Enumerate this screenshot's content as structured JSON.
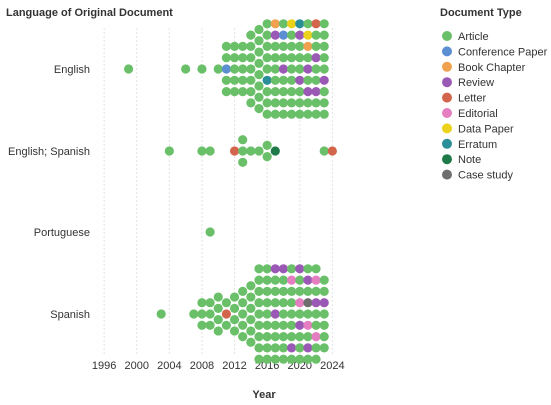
{
  "chart_data": {
    "type": "scatter",
    "title": "",
    "y_title": "Language of Original Document",
    "x_title": "Year",
    "legend_title": "Document Type",
    "legend_position": "right",
    "grid": true,
    "x_ticks": [
      "1996",
      "2000",
      "2004",
      "2008",
      "2012",
      "2016",
      "2020",
      "2024"
    ],
    "x_range": [
      1996,
      2024
    ],
    "categories": [
      "English",
      "English; Spanish",
      "Portuguese",
      "Spanish"
    ],
    "series": [
      {
        "name": "Article",
        "color": "#6abf69"
      },
      {
        "name": "Conference Paper",
        "color": "#5b8fd1"
      },
      {
        "name": "Book Chapter",
        "color": "#f0a150"
      },
      {
        "name": "Review",
        "color": "#9b59b6"
      },
      {
        "name": "Letter",
        "color": "#d2654b"
      },
      {
        "name": "Editorial",
        "color": "#e57ec0"
      },
      {
        "name": "Data Paper",
        "color": "#ecd21b"
      },
      {
        "name": "Erratum",
        "color": "#2a8f99"
      },
      {
        "name": "Note",
        "color": "#1f7a4a"
      },
      {
        "name": "Case study",
        "color": "#6e6e6e"
      }
    ],
    "columns": [
      {
        "cat": "English",
        "year": 1999,
        "types": [
          "Article"
        ]
      },
      {
        "cat": "English",
        "year": 2006,
        "types": [
          "Article"
        ]
      },
      {
        "cat": "English",
        "year": 2008,
        "types": [
          "Article"
        ]
      },
      {
        "cat": "English",
        "year": 2010,
        "types": [
          "Article"
        ]
      },
      {
        "cat": "English",
        "year": 2011,
        "types": [
          "Article",
          "Article",
          "Conference Paper",
          "Article",
          "Article"
        ]
      },
      {
        "cat": "English",
        "year": 2012,
        "types": [
          "Article",
          "Article",
          "Article",
          "Article",
          "Article"
        ]
      },
      {
        "cat": "English",
        "year": 2013,
        "types": [
          "Article",
          "Article",
          "Article",
          "Article",
          "Article"
        ]
      },
      {
        "cat": "English",
        "year": 2014,
        "types": [
          "Article",
          "Article",
          "Article",
          "Article",
          "Article",
          "Article",
          "Article"
        ]
      },
      {
        "cat": "English",
        "year": 2015,
        "types": [
          "Article",
          "Article",
          "Article",
          "Article",
          "Article",
          "Article",
          "Article",
          "Article"
        ]
      },
      {
        "cat": "English",
        "year": 2016,
        "types": [
          "Article",
          "Article",
          "Article",
          "Article",
          "Article",
          "Erratum",
          "Article",
          "Article",
          "Article"
        ]
      },
      {
        "cat": "English",
        "year": 2017,
        "types": [
          "Book Chapter",
          "Review",
          "Article",
          "Article",
          "Article",
          "Article",
          "Article",
          "Article",
          "Article"
        ]
      },
      {
        "cat": "English",
        "year": 2018,
        "types": [
          "Article",
          "Conference Paper",
          "Article",
          "Article",
          "Review",
          "Article",
          "Article",
          "Article",
          "Article"
        ]
      },
      {
        "cat": "English",
        "year": 2019,
        "types": [
          "Data Paper",
          "Article",
          "Article",
          "Article",
          "Article",
          "Article",
          "Article",
          "Article",
          "Article"
        ]
      },
      {
        "cat": "English",
        "year": 2020,
        "types": [
          "Erratum",
          "Review",
          "Article",
          "Article",
          "Article",
          "Review",
          "Article",
          "Article",
          "Article"
        ]
      },
      {
        "cat": "English",
        "year": 2021,
        "types": [
          "Article",
          "Data Paper",
          "Book Chapter",
          "Article",
          "Review",
          "Article",
          "Review",
          "Article",
          "Article"
        ]
      },
      {
        "cat": "English",
        "year": 2022,
        "types": [
          "Letter",
          "Article",
          "Article",
          "Review",
          "Article",
          "Article",
          "Review",
          "Article",
          "Article"
        ]
      },
      {
        "cat": "English",
        "year": 2023,
        "types": [
          "Article",
          "Article",
          "Article",
          "Article",
          "Article",
          "Review",
          "Article",
          "Article",
          "Article"
        ]
      },
      {
        "cat": "English; Spanish",
        "year": 2004,
        "types": [
          "Article"
        ]
      },
      {
        "cat": "English; Spanish",
        "year": 2008,
        "types": [
          "Article"
        ]
      },
      {
        "cat": "English; Spanish",
        "year": 2009,
        "types": [
          "Article"
        ]
      },
      {
        "cat": "English; Spanish",
        "year": 2012,
        "types": [
          "Letter"
        ]
      },
      {
        "cat": "English; Spanish",
        "year": 2013,
        "types": [
          "Article",
          "Article",
          "Article"
        ]
      },
      {
        "cat": "English; Spanish",
        "year": 2014,
        "types": [
          "Article"
        ]
      },
      {
        "cat": "English; Spanish",
        "year": 2015,
        "types": [
          "Article"
        ]
      },
      {
        "cat": "English; Spanish",
        "year": 2016,
        "types": [
          "Article",
          "Article"
        ]
      },
      {
        "cat": "English; Spanish",
        "year": 2017,
        "types": [
          "Note"
        ]
      },
      {
        "cat": "English; Spanish",
        "year": 2023,
        "types": [
          "Article"
        ]
      },
      {
        "cat": "English; Spanish",
        "year": 2024,
        "types": [
          "Letter"
        ]
      },
      {
        "cat": "Portuguese",
        "year": 2009,
        "types": [
          "Article"
        ]
      },
      {
        "cat": "Spanish",
        "year": 2003,
        "types": [
          "Article"
        ]
      },
      {
        "cat": "Spanish",
        "year": 2007,
        "types": [
          "Article"
        ]
      },
      {
        "cat": "Spanish",
        "year": 2008,
        "types": [
          "Article",
          "Article",
          "Article"
        ]
      },
      {
        "cat": "Spanish",
        "year": 2009,
        "types": [
          "Article",
          "Article",
          "Article"
        ]
      },
      {
        "cat": "Spanish",
        "year": 2010,
        "types": [
          "Article",
          "Article",
          "Article",
          "Article"
        ]
      },
      {
        "cat": "Spanish",
        "year": 2011,
        "types": [
          "Article",
          "Letter",
          "Article"
        ]
      },
      {
        "cat": "Spanish",
        "year": 2012,
        "types": [
          "Article",
          "Article",
          "Article",
          "Article"
        ]
      },
      {
        "cat": "Spanish",
        "year": 2013,
        "types": [
          "Article",
          "Article",
          "Article",
          "Article",
          "Article"
        ]
      },
      {
        "cat": "Spanish",
        "year": 2014,
        "types": [
          "Article",
          "Article",
          "Article",
          "Article",
          "Article",
          "Article"
        ]
      },
      {
        "cat": "Spanish",
        "year": 2015,
        "types": [
          "Article",
          "Article",
          "Article",
          "Article",
          "Article",
          "Article",
          "Article",
          "Article",
          "Article"
        ]
      },
      {
        "cat": "Spanish",
        "year": 2016,
        "types": [
          "Article",
          "Article",
          "Article",
          "Article",
          "Article",
          "Article",
          "Article",
          "Article",
          "Article"
        ]
      },
      {
        "cat": "Spanish",
        "year": 2017,
        "types": [
          "Review",
          "Article",
          "Article",
          "Article",
          "Review",
          "Article",
          "Article",
          "Article",
          "Article"
        ]
      },
      {
        "cat": "Spanish",
        "year": 2018,
        "types": [
          "Review",
          "Article",
          "Article",
          "Article",
          "Article",
          "Article",
          "Article",
          "Article",
          "Article"
        ]
      },
      {
        "cat": "Spanish",
        "year": 2019,
        "types": [
          "Article",
          "Editorial",
          "Article",
          "Article",
          "Article",
          "Article",
          "Article",
          "Review",
          "Article"
        ]
      },
      {
        "cat": "Spanish",
        "year": 2020,
        "types": [
          "Review",
          "Article",
          "Article",
          "Editorial",
          "Article",
          "Review",
          "Article",
          "Article",
          "Article"
        ]
      },
      {
        "cat": "Spanish",
        "year": 2021,
        "types": [
          "Article",
          "Review",
          "Article",
          "Case study",
          "Article",
          "Editorial",
          "Article",
          "Review",
          "Article"
        ]
      },
      {
        "cat": "Spanish",
        "year": 2022,
        "types": [
          "Article",
          "Editorial",
          "Article",
          "Review",
          "Article",
          "Article",
          "Editorial",
          "Article",
          "Article"
        ]
      },
      {
        "cat": "Spanish",
        "year": 2023,
        "types": [
          "Article",
          "Article",
          "Review",
          "Article",
          "Article",
          "Article",
          "Article"
        ]
      }
    ]
  }
}
